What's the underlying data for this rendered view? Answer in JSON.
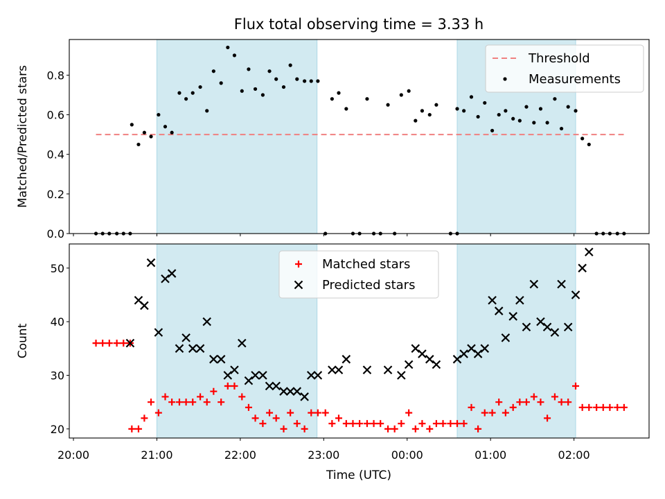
{
  "chart_data": {
    "type": "scatter",
    "title": "Flux total observing time = 3.33 h",
    "xlabel": "Time (UTC)",
    "x_ticks": [
      "20:00",
      "21:00",
      "22:00",
      "23:00",
      "00:00",
      "01:00",
      "02:00"
    ],
    "x_tick_hours": [
      0,
      1,
      2,
      3,
      4,
      5,
      6
    ],
    "x_range_hours_after_2000": [
      -0.05,
      6.9
    ],
    "shaded_intervals_hours_after_2000": [
      [
        1.0,
        2.92
      ],
      [
        4.6,
        6.02
      ]
    ],
    "shade_color": "#add8e6",
    "panels": [
      {
        "name": "ratio",
        "ylabel": "Matched/Predicted stars",
        "ylim": [
          0,
          0.98
        ],
        "yticks": [
          0.0,
          0.2,
          0.4,
          0.6,
          0.8
        ],
        "ytick_labels": [
          "0.0",
          "0.2",
          "0.4",
          "0.6",
          "0.8"
        ],
        "legend_position": "top-right",
        "threshold": {
          "name": "Threshold",
          "value": 0.5,
          "x_start": 0.27,
          "x_end": 6.6,
          "color": "#f08080"
        },
        "series": [
          {
            "name": "Measurements",
            "marker": "dot",
            "color": "#000000",
            "points": [
              [
                0.27,
                0.0
              ],
              [
                0.35,
                0.0
              ],
              [
                0.43,
                0.0
              ],
              [
                0.52,
                0.0
              ],
              [
                0.6,
                0.0
              ],
              [
                0.68,
                0.0
              ],
              [
                0.7,
                0.55
              ],
              [
                0.78,
                0.45
              ],
              [
                0.85,
                0.51
              ],
              [
                0.93,
                0.49
              ],
              [
                1.02,
                0.6
              ],
              [
                1.1,
                0.54
              ],
              [
                1.18,
                0.51
              ],
              [
                1.27,
                0.71
              ],
              [
                1.35,
                0.68
              ],
              [
                1.43,
                0.71
              ],
              [
                1.52,
                0.74
              ],
              [
                1.6,
                0.62
              ],
              [
                1.68,
                0.82
              ],
              [
                1.77,
                0.76
              ],
              [
                1.85,
                0.94
              ],
              [
                1.93,
                0.9
              ],
              [
                2.02,
                0.72
              ],
              [
                2.1,
                0.83
              ],
              [
                2.18,
                0.73
              ],
              [
                2.27,
                0.7
              ],
              [
                2.35,
                0.82
              ],
              [
                2.43,
                0.78
              ],
              [
                2.52,
                0.74
              ],
              [
                2.6,
                0.85
              ],
              [
                2.68,
                0.78
              ],
              [
                2.77,
                0.77
              ],
              [
                2.85,
                0.77
              ],
              [
                2.93,
                0.77
              ],
              [
                3.02,
                0.0
              ],
              [
                3.1,
                0.68
              ],
              [
                3.18,
                0.71
              ],
              [
                3.27,
                0.63
              ],
              [
                3.35,
                0.0
              ],
              [
                3.43,
                0.0
              ],
              [
                3.52,
                0.68
              ],
              [
                3.6,
                0.0
              ],
              [
                3.68,
                0.0
              ],
              [
                3.77,
                0.65
              ],
              [
                3.85,
                0.0
              ],
              [
                3.93,
                0.7
              ],
              [
                4.02,
                0.72
              ],
              [
                4.1,
                0.57
              ],
              [
                4.18,
                0.62
              ],
              [
                4.27,
                0.6
              ],
              [
                4.35,
                0.65
              ],
              [
                4.52,
                0.0
              ],
              [
                4.6,
                0.0
              ],
              [
                4.6,
                0.63
              ],
              [
                4.68,
                0.62
              ],
              [
                4.77,
                0.69
              ],
              [
                4.85,
                0.59
              ],
              [
                4.93,
                0.66
              ],
              [
                5.02,
                0.52
              ],
              [
                5.1,
                0.6
              ],
              [
                5.18,
                0.62
              ],
              [
                5.27,
                0.58
              ],
              [
                5.35,
                0.57
              ],
              [
                5.43,
                0.64
              ],
              [
                5.52,
                0.56
              ],
              [
                5.6,
                0.63
              ],
              [
                5.68,
                0.56
              ],
              [
                5.77,
                0.68
              ],
              [
                5.85,
                0.53
              ],
              [
                5.93,
                0.64
              ],
              [
                6.02,
                0.62
              ],
              [
                6.1,
                0.48
              ],
              [
                6.18,
                0.45
              ],
              [
                6.27,
                0.0
              ],
              [
                6.35,
                0.0
              ],
              [
                6.43,
                0.0
              ],
              [
                6.52,
                0.0
              ],
              [
                6.6,
                0.0
              ]
            ]
          }
        ]
      },
      {
        "name": "counts",
        "ylabel": "Count",
        "ylim": [
          18.3,
          54.5
        ],
        "yticks": [
          20,
          30,
          40,
          50
        ],
        "ytick_labels": [
          "20",
          "30",
          "40",
          "50"
        ],
        "legend_position": "top-center",
        "series": [
          {
            "name": "Matched stars",
            "marker": "plus",
            "color": "#ff0000",
            "points": [
              [
                0.27,
                36
              ],
              [
                0.35,
                36
              ],
              [
                0.43,
                36
              ],
              [
                0.52,
                36
              ],
              [
                0.6,
                36
              ],
              [
                0.68,
                36
              ],
              [
                0.7,
                20
              ],
              [
                0.78,
                20
              ],
              [
                0.85,
                22
              ],
              [
                0.93,
                25
              ],
              [
                1.02,
                23
              ],
              [
                1.1,
                26
              ],
              [
                1.18,
                25
              ],
              [
                1.27,
                25
              ],
              [
                1.35,
                25
              ],
              [
                1.43,
                25
              ],
              [
                1.52,
                26
              ],
              [
                1.6,
                25
              ],
              [
                1.68,
                27
              ],
              [
                1.77,
                25
              ],
              [
                1.85,
                28
              ],
              [
                1.93,
                28
              ],
              [
                2.02,
                26
              ],
              [
                2.1,
                24
              ],
              [
                2.18,
                22
              ],
              [
                2.27,
                21
              ],
              [
                2.35,
                23
              ],
              [
                2.43,
                22
              ],
              [
                2.52,
                20
              ],
              [
                2.6,
                23
              ],
              [
                2.68,
                21
              ],
              [
                2.77,
                20
              ],
              [
                2.85,
                23
              ],
              [
                2.93,
                23
              ],
              [
                3.02,
                23
              ],
              [
                3.1,
                21
              ],
              [
                3.18,
                22
              ],
              [
                3.27,
                21
              ],
              [
                3.35,
                21
              ],
              [
                3.43,
                21
              ],
              [
                3.52,
                21
              ],
              [
                3.6,
                21
              ],
              [
                3.68,
                21
              ],
              [
                3.77,
                20
              ],
              [
                3.85,
                20
              ],
              [
                3.93,
                21
              ],
              [
                4.02,
                23
              ],
              [
                4.1,
                20
              ],
              [
                4.18,
                21
              ],
              [
                4.27,
                20
              ],
              [
                4.35,
                21
              ],
              [
                4.43,
                21
              ],
              [
                4.52,
                21
              ],
              [
                4.6,
                21
              ],
              [
                4.68,
                21
              ],
              [
                4.77,
                24
              ],
              [
                4.85,
                20
              ],
              [
                4.93,
                23
              ],
              [
                5.02,
                23
              ],
              [
                5.1,
                25
              ],
              [
                5.18,
                23
              ],
              [
                5.27,
                24
              ],
              [
                5.35,
                25
              ],
              [
                5.43,
                25
              ],
              [
                5.52,
                26
              ],
              [
                5.6,
                25
              ],
              [
                5.68,
                22
              ],
              [
                5.77,
                26
              ],
              [
                5.85,
                25
              ],
              [
                5.93,
                25
              ],
              [
                6.02,
                28
              ],
              [
                6.1,
                24
              ],
              [
                6.18,
                24
              ],
              [
                6.27,
                24
              ],
              [
                6.35,
                24
              ],
              [
                6.43,
                24
              ],
              [
                6.52,
                24
              ],
              [
                6.6,
                24
              ]
            ]
          },
          {
            "name": "Predicted stars",
            "marker": "x",
            "color": "#000000",
            "points": [
              [
                0.68,
                36
              ],
              [
                0.78,
                44
              ],
              [
                0.85,
                43
              ],
              [
                0.93,
                51
              ],
              [
                1.02,
                38
              ],
              [
                1.1,
                48
              ],
              [
                1.18,
                49
              ],
              [
                1.27,
                35
              ],
              [
                1.35,
                37
              ],
              [
                1.43,
                35
              ],
              [
                1.52,
                35
              ],
              [
                1.6,
                40
              ],
              [
                1.68,
                33
              ],
              [
                1.77,
                33
              ],
              [
                1.85,
                30
              ],
              [
                1.93,
                31
              ],
              [
                2.02,
                36
              ],
              [
                2.1,
                29
              ],
              [
                2.18,
                30
              ],
              [
                2.27,
                30
              ],
              [
                2.35,
                28
              ],
              [
                2.43,
                28
              ],
              [
                2.52,
                27
              ],
              [
                2.6,
                27
              ],
              [
                2.68,
                27
              ],
              [
                2.77,
                26
              ],
              [
                2.85,
                30
              ],
              [
                2.93,
                30
              ],
              [
                3.1,
                31
              ],
              [
                3.18,
                31
              ],
              [
                3.27,
                33
              ],
              [
                3.52,
                31
              ],
              [
                3.77,
                31
              ],
              [
                3.93,
                30
              ],
              [
                4.02,
                32
              ],
              [
                4.1,
                35
              ],
              [
                4.18,
                34
              ],
              [
                4.27,
                33
              ],
              [
                4.35,
                32
              ],
              [
                4.6,
                33
              ],
              [
                4.68,
                34
              ],
              [
                4.77,
                35
              ],
              [
                4.85,
                34
              ],
              [
                4.93,
                35
              ],
              [
                5.02,
                44
              ],
              [
                5.1,
                42
              ],
              [
                5.18,
                37
              ],
              [
                5.27,
                41
              ],
              [
                5.35,
                44
              ],
              [
                5.43,
                39
              ],
              [
                5.52,
                47
              ],
              [
                5.6,
                40
              ],
              [
                5.68,
                39
              ],
              [
                5.77,
                38
              ],
              [
                5.85,
                47
              ],
              [
                5.93,
                39
              ],
              [
                6.02,
                45
              ],
              [
                6.1,
                50
              ],
              [
                6.18,
                53
              ]
            ]
          }
        ]
      }
    ]
  }
}
